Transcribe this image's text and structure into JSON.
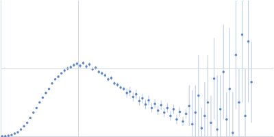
{
  "chart_data": {
    "type": "scatter",
    "color": "#3a6cc2",
    "marker": "circle",
    "grid": true,
    "tick_labels": false,
    "xlim": [
      0,
      3.5
    ],
    "xticks": [
      1
    ],
    "ylim": [
      0,
      2
    ],
    "yticks": [
      1
    ],
    "x": [
      0.02,
      0.06,
      0.1,
      0.14,
      0.18,
      0.22,
      0.26,
      0.3,
      0.34,
      0.38,
      0.42,
      0.46,
      0.5,
      0.54,
      0.58,
      0.62,
      0.66,
      0.7,
      0.74,
      0.78,
      0.82,
      0.86,
      0.9,
      0.94,
      0.98,
      1.02,
      1.06,
      1.1,
      1.14,
      1.18,
      1.22,
      1.26,
      1.3,
      1.34,
      1.38,
      1.42,
      1.46,
      1.5,
      1.54,
      1.58,
      1.62,
      1.66,
      1.7,
      1.74,
      1.78,
      1.82,
      1.86,
      1.9,
      1.94,
      1.98,
      2.02,
      2.06,
      2.1,
      2.14,
      2.18,
      2.22,
      2.26,
      2.3,
      2.34,
      2.38,
      2.42,
      2.46,
      2.5,
      2.54,
      2.58,
      2.62,
      2.66,
      2.7,
      2.74,
      2.78,
      2.82,
      2.86,
      2.9,
      2.94,
      2.98,
      3.02,
      3.06,
      3.1,
      3.14,
      3.18,
      3.22
    ],
    "values": [
      0.0,
      0.002,
      0.01,
      0.02,
      0.04,
      0.06,
      0.1,
      0.15,
      0.2,
      0.27,
      0.35,
      0.42,
      0.5,
      0.57,
      0.64,
      0.7,
      0.78,
      0.84,
      0.88,
      0.93,
      0.97,
      1.0,
      1.02,
      1.05,
      1.07,
      1.04,
      1.08,
      1.03,
      1.06,
      0.99,
      1.01,
      0.95,
      0.93,
      0.9,
      0.84,
      0.86,
      0.78,
      0.76,
      0.72,
      0.7,
      0.64,
      0.66,
      0.58,
      0.62,
      0.52,
      0.56,
      0.47,
      0.53,
      0.42,
      0.48,
      0.38,
      0.46,
      0.35,
      0.42,
      0.3,
      0.4,
      0.25,
      0.36,
      0.22,
      0.33,
      0.45,
      0.18,
      0.35,
      0.6,
      0.12,
      0.3,
      0.5,
      0.2,
      0.85,
      0.1,
      0.4,
      0.95,
      0.25,
      0.7,
      0.05,
      1.2,
      0.5,
      1.5,
      0.3,
      1.4,
      0.8
    ],
    "errors": [
      0.005,
      0.005,
      0.005,
      0.005,
      0.005,
      0.005,
      0.005,
      0.005,
      0.005,
      0.005,
      0.005,
      0.005,
      0.005,
      0.005,
      0.005,
      0.005,
      0.005,
      0.005,
      0.005,
      0.005,
      0.03,
      0.03,
      0.03,
      0.03,
      0.03,
      0.03,
      0.03,
      0.03,
      0.03,
      0.03,
      0.03,
      0.03,
      0.03,
      0.03,
      0.03,
      0.03,
      0.03,
      0.03,
      0.03,
      0.03,
      0.07,
      0.07,
      0.07,
      0.07,
      0.07,
      0.07,
      0.07,
      0.07,
      0.07,
      0.07,
      0.07,
      0.07,
      0.07,
      0.07,
      0.07,
      0.07,
      0.07,
      0.07,
      0.07,
      0.07,
      0.3,
      0.5,
      0.4,
      0.6,
      0.3,
      0.5,
      0.7,
      0.4,
      0.6,
      0.8,
      0.5,
      0.7,
      0.4,
      0.9,
      0.6,
      0.8,
      0.5,
      1.0,
      0.7,
      0.9,
      0.6
    ]
  }
}
